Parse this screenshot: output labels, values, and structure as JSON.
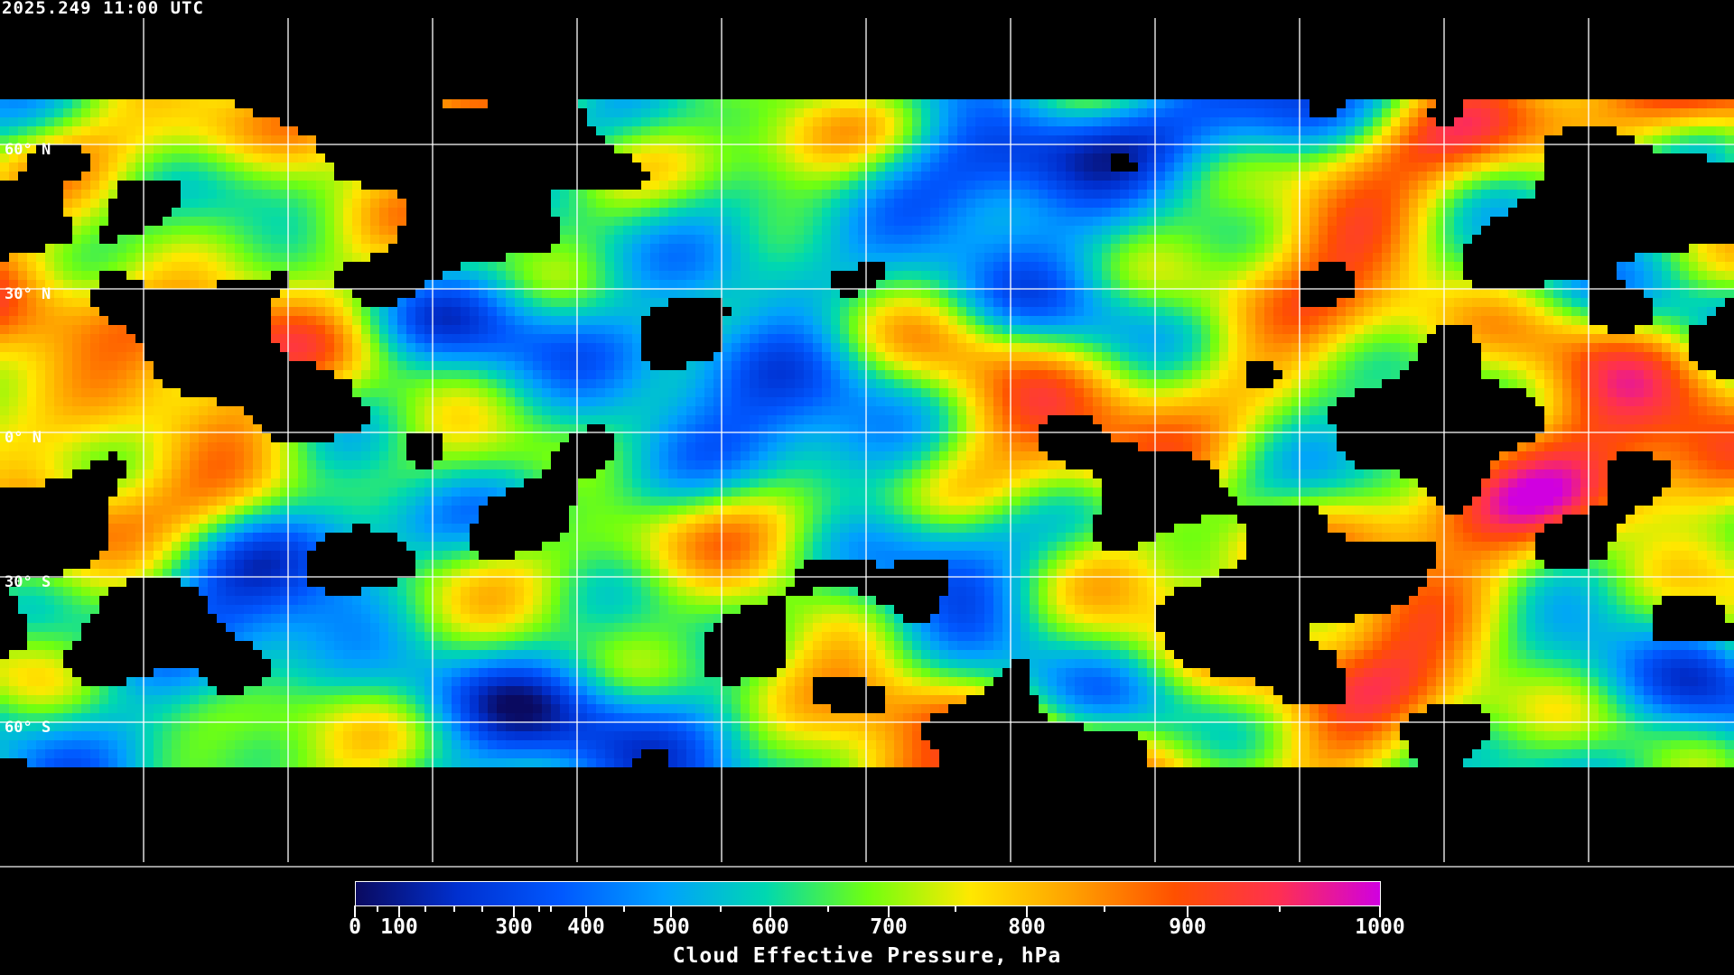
{
  "timestamp": "2025.249 11:00 UTC",
  "map": {
    "projection": "equirectangular",
    "lat_labels": [
      "60° N",
      "30° N",
      "0° N",
      "30° S",
      "60° S"
    ],
    "lat_values": [
      60,
      30,
      0,
      -30,
      -60
    ],
    "gridline_interval_lon_deg": 30,
    "gridline_color": "#ffffff",
    "coastline_color": "#ffffff",
    "no_data_color": "#000000"
  },
  "colorbar": {
    "title": "Cloud Effective Pressure, hPa",
    "tick_labels": [
      "0",
      "100",
      "300",
      "400",
      "500",
      "600",
      "700",
      "800",
      "900",
      "1000"
    ],
    "range": [
      0,
      1000
    ],
    "colors": [
      "#0a0a60",
      "#0030d0",
      "#0058ff",
      "#00a0ff",
      "#00d8b0",
      "#70ff10",
      "#ffe800",
      "#ffa000",
      "#ff5000",
      "#ff3050",
      "#d000e0"
    ]
  }
}
